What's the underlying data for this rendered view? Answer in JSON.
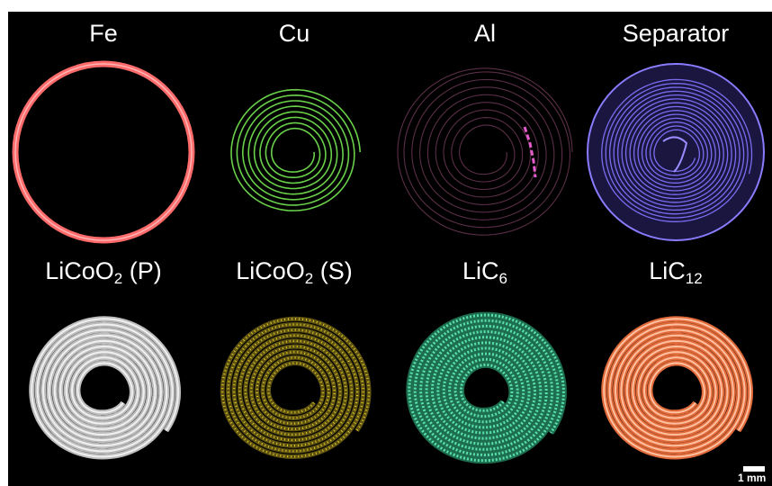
{
  "panels": [
    {
      "label": "Fe",
      "sub": "",
      "suffix": "",
      "color": "#ff5b5b",
      "pattern": "ring"
    },
    {
      "label": "Cu",
      "sub": "",
      "suffix": "",
      "color": "#66cc44",
      "pattern": "spiral-thin"
    },
    {
      "label": "Al",
      "sub": "",
      "suffix": "",
      "color": "#5e2d48",
      "pattern": "spiral-faint"
    },
    {
      "label": "Separator",
      "sub": "",
      "suffix": "",
      "color": "#6a5ae0",
      "pattern": "spiral-dense"
    },
    {
      "label": "LiCoO",
      "sub": "2",
      "suffix": " (P)",
      "color": "#d9d9d9",
      "pattern": "spiral-thick"
    },
    {
      "label": "LiCoO",
      "sub": "2",
      "suffix": " (S)",
      "color": "#c8b21e",
      "pattern": "spiral-speckle"
    },
    {
      "label": "LiC",
      "sub": "6",
      "suffix": "",
      "color": "#38c48e",
      "pattern": "spiral-speckle"
    },
    {
      "label": "LiC",
      "sub": "12",
      "suffix": "",
      "color": "#f08a5a",
      "pattern": "spiral-thick"
    }
  ],
  "scale_bar": {
    "label": "1 mm"
  }
}
